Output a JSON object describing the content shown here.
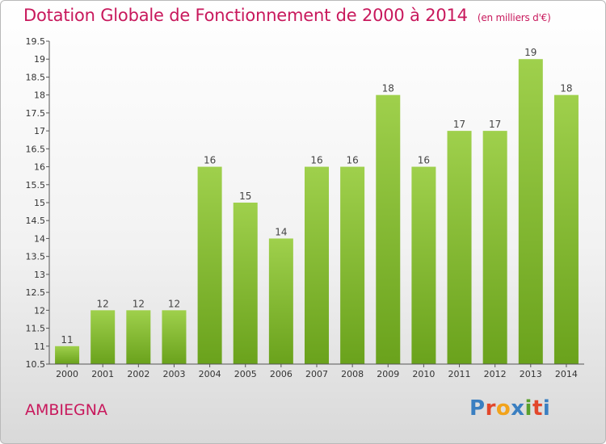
{
  "title": "Dotation Globale de Fonctionnement de 2000 à 2014",
  "subtitle": "(en milliers d'€)",
  "commune": "AMBIEGNA",
  "logo": {
    "text": "Proxiti",
    "colors": [
      "#3a7fc1",
      "#e2472b",
      "#f2a31b",
      "#3a7fc1",
      "#5aa02c",
      "#e2472b",
      "#3a7fc1"
    ]
  },
  "colors": {
    "bar_light": "#9fd04c",
    "bar_dark": "#6aa21c",
    "title": "#c8185c",
    "axis": "#555555"
  },
  "chart_data": {
    "type": "bar",
    "categories": [
      "2000",
      "2001",
      "2002",
      "2003",
      "2004",
      "2005",
      "2006",
      "2007",
      "2008",
      "2009",
      "2010",
      "2011",
      "2012",
      "2013",
      "2014"
    ],
    "values": [
      11,
      12,
      12,
      12,
      16,
      15,
      14,
      16,
      16,
      18,
      16,
      17,
      17,
      19,
      18
    ],
    "ylim": [
      10.5,
      19.5
    ],
    "yticks": [
      "10.5",
      "11",
      "11.5",
      "12",
      "12.5",
      "13",
      "13.5",
      "14",
      "14.5",
      "15",
      "15.5",
      "16",
      "16.5",
      "17",
      "17.5",
      "18",
      "18.5",
      "19",
      "19.5"
    ],
    "grid": false,
    "legend": "none",
    "data_labels": true
  }
}
